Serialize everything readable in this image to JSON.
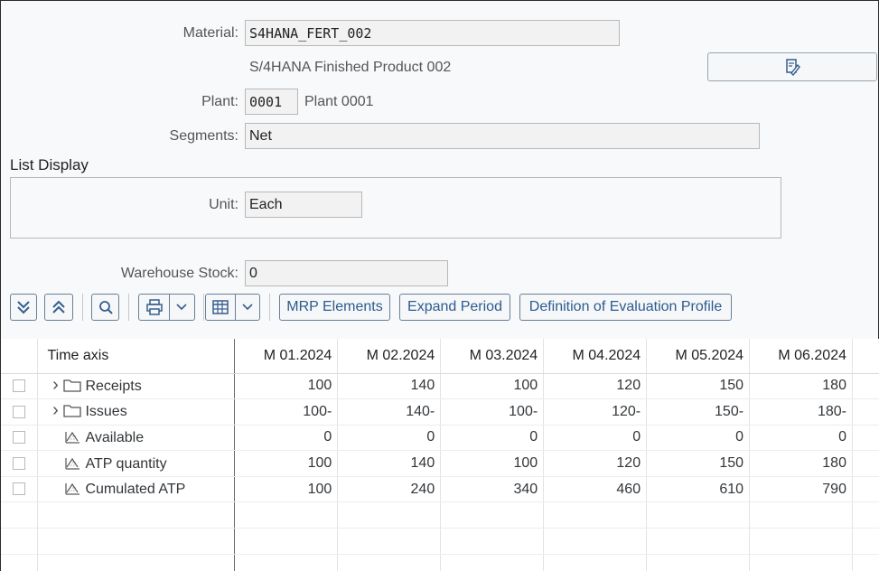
{
  "header": {
    "material_label": "Material:",
    "material_value": "S4HANA_FERT_002",
    "material_desc": "S/4HANA Finished Product 002",
    "plant_label": "Plant:",
    "plant_value": "0001",
    "plant_desc": "Plant 0001",
    "segments_label": "Segments:",
    "segments_value": "Net"
  },
  "list_display": {
    "title": "List Display",
    "unit_label": "Unit:",
    "unit_value": "Each"
  },
  "warehouse": {
    "label": "Warehouse Stock:",
    "value": "0"
  },
  "toolbar": {
    "mrp_elements": "MRP Elements",
    "expand_period": "Expand Period",
    "definition_profile": "Definition of Evaluation Profile"
  },
  "table": {
    "axis_header": "Time axis",
    "periods": [
      "M 01.2024",
      "M 02.2024",
      "M 03.2024",
      "M 04.2024",
      "M 05.2024",
      "M 06.2024"
    ],
    "rows": [
      {
        "label": "Receipts",
        "icon": "folder-icon",
        "expandable": true,
        "values": [
          "100",
          "140",
          "100",
          "120",
          "150",
          "180"
        ]
      },
      {
        "label": "Issues",
        "icon": "folder-icon",
        "expandable": true,
        "values": [
          "100-",
          "140-",
          "100-",
          "120-",
          "150-",
          "180-"
        ]
      },
      {
        "label": "Available",
        "icon": "chart-grid-icon",
        "expandable": false,
        "values": [
          "0",
          "0",
          "0",
          "0",
          "0",
          "0"
        ]
      },
      {
        "label": "ATP quantity",
        "icon": "chart-grid-icon",
        "expandable": false,
        "values": [
          "100",
          "140",
          "100",
          "120",
          "150",
          "180"
        ]
      },
      {
        "label": "Cumulated ATP",
        "icon": "chart-grid-icon",
        "expandable": false,
        "values": [
          "100",
          "240",
          "340",
          "460",
          "610",
          "790"
        ]
      }
    ]
  }
}
